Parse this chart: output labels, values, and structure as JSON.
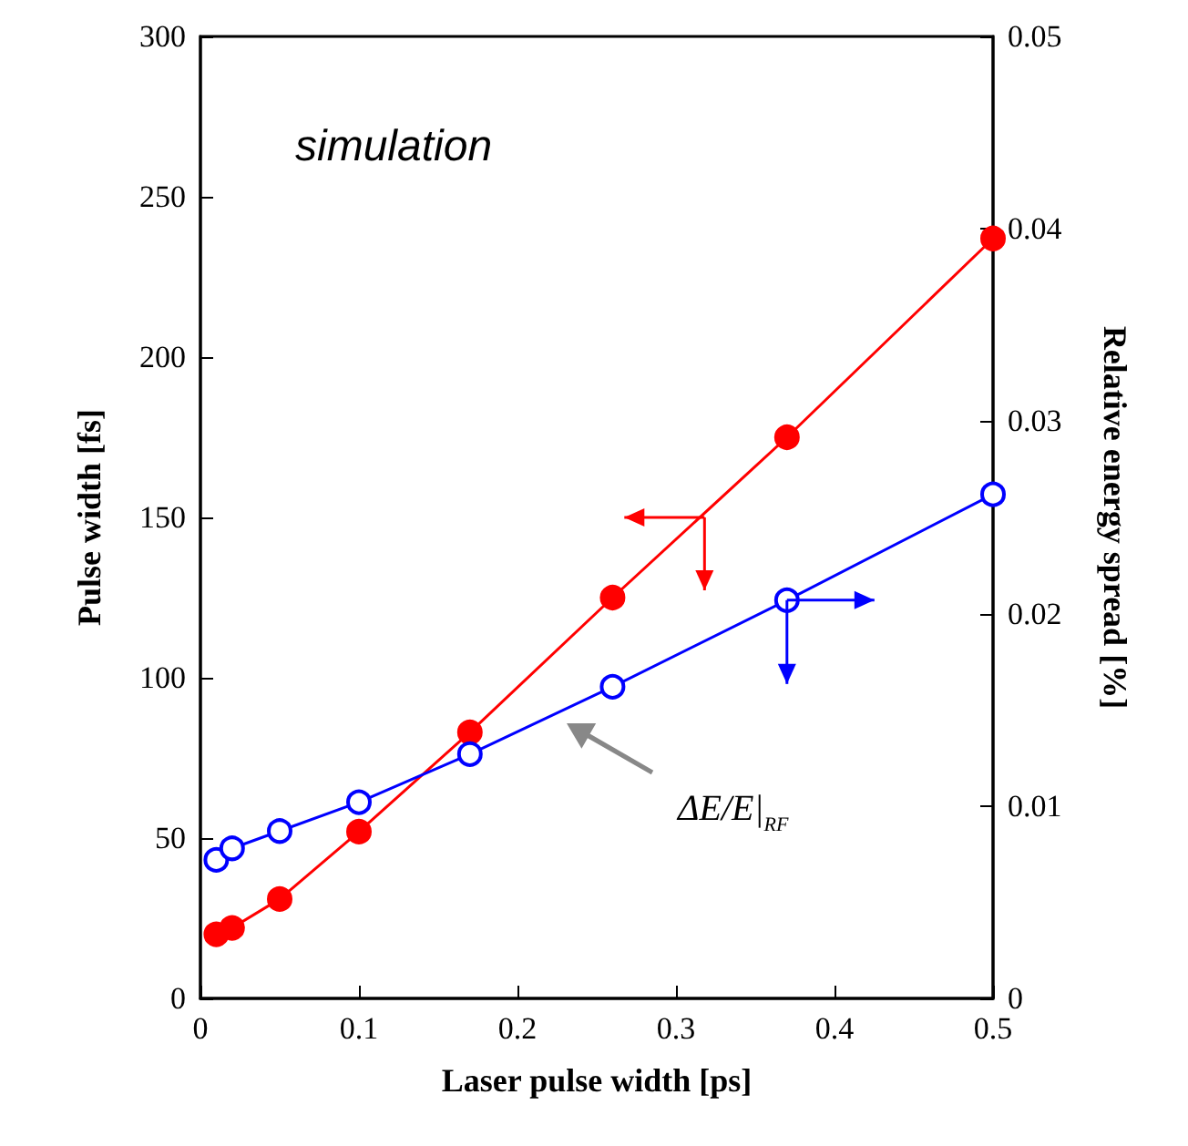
{
  "chart_data": {
    "type": "line",
    "xlabel": "Laser pulse width [ps]",
    "ylabel": "Pulse width [fs]",
    "y2label": "Relative energy spread [%]",
    "x": [
      0.01,
      0.02,
      0.05,
      0.1,
      0.17,
      0.26,
      0.37,
      0.5
    ],
    "series": [
      {
        "color": "#ff0000",
        "marker": "circle",
        "values": [
          20,
          22,
          31,
          52,
          83,
          125,
          175,
          237
        ]
      },
      {
        "color": "#0000ff",
        "marker": "circle",
        "axis": "y2",
        "values": [
          0.0072,
          0.0078,
          0.0087,
          0.0102,
          0.0127,
          0.0162,
          0.0207,
          0.0262
        ]
      }
    ],
    "xlim": [
      0,
      0.5
    ],
    "xticks": [
      0,
      0.1,
      0.2,
      0.3,
      0.4,
      0.5
    ],
    "ylim": [
      0,
      300
    ],
    "yticks": [
      0,
      50,
      100,
      150,
      200,
      250,
      300
    ],
    "y2lim": [
      0,
      0.05
    ],
    "y2ticks": [
      0,
      0.01,
      0.02,
      0.03,
      0.04,
      0.05
    ],
    "annotations": [
      "simulation",
      "ΔE/E|$_{RF}$"
    ],
    "grid": false
  }
}
